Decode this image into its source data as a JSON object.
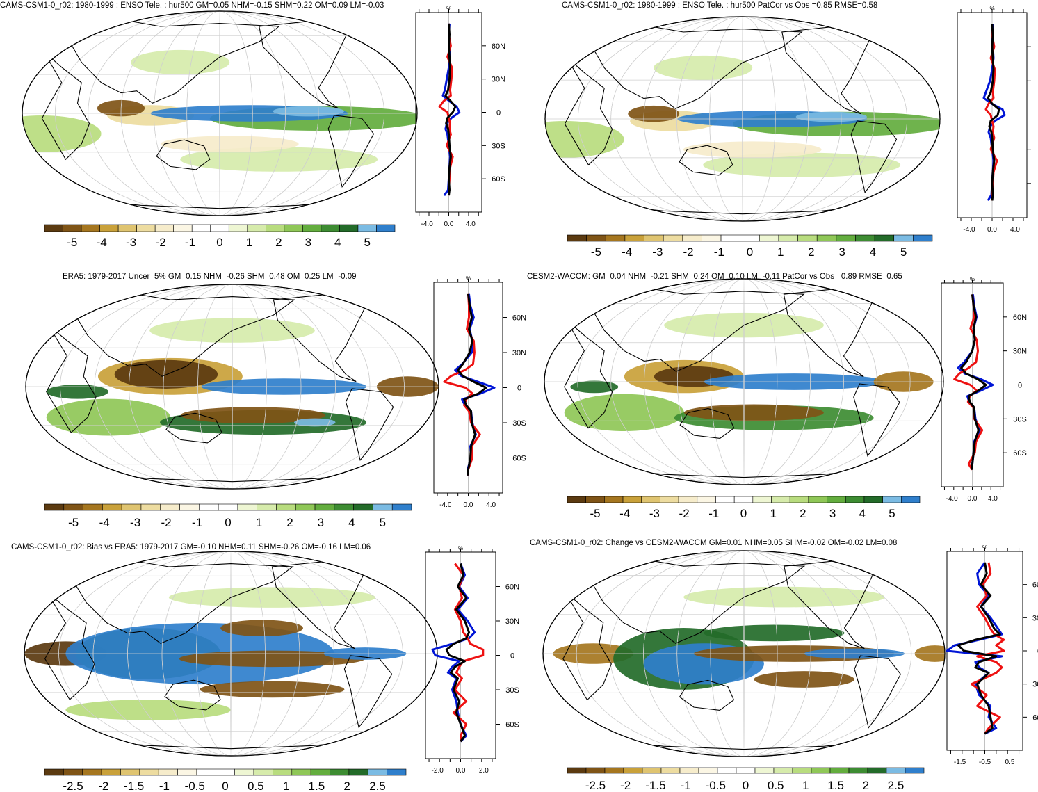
{
  "palette": {
    "colors": [
      "#5b3a10",
      "#7f5416",
      "#a5761f",
      "#c9a13a",
      "#dfc470",
      "#eddca0",
      "#f6eccb",
      "#fbf6e4",
      "#ffffff",
      "#ffffff",
      "#eef6d3",
      "#d6ebab",
      "#b8dc7e",
      "#8fc757",
      "#63ad3e",
      "#3d8c32",
      "#236b29",
      "#7bbbe3",
      "#2f7fcc"
    ],
    "land_edge": "#000000",
    "profile_black": "#000000",
    "profile_blue": "#0015d6",
    "profile_red": "#ee1111"
  },
  "chart_data": [
    {
      "type": "heatmap",
      "title": "CAMS-CSM1-0_r02: 1980-1999 : ENSO Tele. : hur500 GM=0.05 NHM=-0.15 SHM=0.22 OM=0.09 LM=-0.03",
      "colorbar_ticks": [
        "-5",
        "-4",
        "-3",
        "-2",
        "-1",
        "0",
        "1",
        "2",
        "3",
        "4",
        "5"
      ],
      "profile": {
        "unit_label": "%",
        "xlim": [
          -5,
          5
        ],
        "x_ticks": [
          "-4.0",
          "0.0",
          "4.0"
        ],
        "y_ticks": [
          "60N",
          "30N",
          "0",
          "30S",
          "60S"
        ],
        "lat": [
          80,
          70,
          60,
          50,
          40,
          30,
          20,
          15,
          10,
          5,
          0,
          -5,
          -10,
          -15,
          -20,
          -30,
          -40,
          -50,
          -60,
          -70,
          -75
        ],
        "series": [
          {
            "color": "black",
            "values": [
              0.0,
              0.1,
              0.0,
              0.1,
              0.2,
              0.1,
              -0.1,
              -0.5,
              0.3,
              1.0,
              0.6,
              -0.2,
              -0.4,
              -0.1,
              0.0,
              0.1,
              0.3,
              0.1,
              0.0,
              0.1,
              0.0
            ]
          },
          {
            "color": "blue",
            "values": [
              0.1,
              0.0,
              0.1,
              0.2,
              0.0,
              -0.3,
              -0.6,
              -0.9,
              0.1,
              1.2,
              1.6,
              0.4,
              -0.3,
              -0.5,
              -0.2,
              0.0,
              0.2,
              0.1,
              0.0,
              -0.1,
              -0.7
            ]
          },
          {
            "color": "red",
            "values": [
              0.0,
              0.0,
              0.3,
              -0.2,
              0.5,
              0.4,
              0.2,
              0.3,
              -0.8,
              -1.4,
              -0.2,
              0.0,
              0.2,
              0.1,
              0.3,
              -0.3,
              0.6,
              0.2,
              0.1,
              0.0,
              0.0
            ]
          }
        ]
      }
    },
    {
      "type": "heatmap",
      "title": "CAMS-CSM1-0_r02: 1980-1999 : ENSO Tele. : hur500 PatCor vs Obs =0.85 RMSE=0.58",
      "colorbar_ticks": [
        "-5",
        "-4",
        "-3",
        "-2",
        "-1",
        "0",
        "1",
        "2",
        "3",
        "4",
        "5"
      ],
      "profile": {
        "unit_label": "%",
        "xlim": [
          -5,
          5
        ],
        "x_ticks": [
          "-4.0",
          "0.0",
          "4.0"
        ],
        "y_ticks": [],
        "lat": [
          80,
          70,
          60,
          50,
          40,
          30,
          20,
          15,
          10,
          5,
          0,
          -5,
          -10,
          -15,
          -20,
          -30,
          -40,
          -50,
          -60,
          -70,
          -75
        ],
        "series": [
          {
            "color": "black",
            "values": [
              0.0,
              0.1,
              0.0,
              0.1,
              0.2,
              0.1,
              -0.2,
              -0.6,
              0.0,
              1.0,
              0.8,
              -0.2,
              -0.4,
              -0.1,
              0.0,
              0.1,
              0.3,
              0.1,
              0.0,
              0.1,
              0.0
            ]
          },
          {
            "color": "blue",
            "values": [
              0.1,
              0.0,
              0.1,
              0.2,
              0.0,
              -0.3,
              -0.9,
              -1.2,
              -0.1,
              1.5,
              1.8,
              0.4,
              -0.3,
              -0.5,
              -0.2,
              0.0,
              0.2,
              0.1,
              0.0,
              -0.1,
              -0.6
            ]
          },
          {
            "color": "red",
            "values": [
              0.0,
              0.0,
              0.3,
              -0.2,
              0.4,
              0.3,
              0.1,
              0.2,
              -0.5,
              -0.9,
              -0.2,
              0.0,
              0.2,
              0.1,
              0.3,
              -0.2,
              0.7,
              0.2,
              0.1,
              0.0,
              0.0
            ]
          }
        ]
      }
    },
    {
      "type": "heatmap",
      "title": "ERA5: 1979-2017 Uncer=5% GM=0.15 NHM=-0.26 SHM=0.48 OM=0.25 LM=-0.09",
      "colorbar_ticks": [
        "-5",
        "-4",
        "-3",
        "-2",
        "-1",
        "0",
        "1",
        "2",
        "3",
        "4",
        "5"
      ],
      "profile": {
        "unit_label": "%",
        "xlim": [
          -5,
          5
        ],
        "x_ticks": [
          "-4.0",
          "0.0",
          "4.0"
        ],
        "y_ticks": [
          "60N",
          "30N",
          "0",
          "30S",
          "60S"
        ],
        "lat": [
          80,
          70,
          60,
          50,
          40,
          30,
          20,
          15,
          10,
          5,
          0,
          -5,
          -10,
          -15,
          -20,
          -30,
          -40,
          -50,
          -60,
          -70,
          -75
        ],
        "series": [
          {
            "color": "black",
            "values": [
              0.0,
              0.2,
              0.5,
              0.1,
              0.6,
              0.2,
              -0.8,
              -1.5,
              -0.8,
              0.8,
              2.6,
              1.5,
              -0.6,
              -0.3,
              0.4,
              0.5,
              1.0,
              0.4,
              0.3,
              0.0,
              0.0
            ]
          },
          {
            "color": "blue",
            "values": [
              0.1,
              0.3,
              0.8,
              0.2,
              0.6,
              0.5,
              -0.9,
              -1.9,
              -1.0,
              1.4,
              3.8,
              1.8,
              -0.9,
              -0.5,
              0.4,
              0.6,
              1.1,
              0.3,
              0.4,
              -0.1,
              0.0
            ]
          },
          {
            "color": "red",
            "values": [
              0.0,
              0.1,
              0.1,
              -0.2,
              0.8,
              0.9,
              0.7,
              -0.5,
              -2.5,
              -3.5,
              -0.4,
              0.6,
              -0.3,
              -0.6,
              0.1,
              0.4,
              1.7,
              0.5,
              0.6,
              0.0,
              0.0
            ]
          }
        ]
      }
    },
    {
      "type": "heatmap",
      "title": "CESM2-WACCM: GM=0.04 NHM=-0.21 SHM=0.24 OM=0.10 LM=-0.11 PatCor vs Obs =0.89 RMSE=0.65",
      "colorbar_ticks": [
        "-5",
        "-4",
        "-3",
        "-2",
        "-1",
        "0",
        "1",
        "2",
        "3",
        "4",
        "5"
      ],
      "profile": {
        "unit_label": "%",
        "xlim": [
          -5,
          5
        ],
        "x_ticks": [
          "-4.0",
          "0.0",
          "4.0"
        ],
        "y_ticks": [
          "60N",
          "30N",
          "0",
          "30S",
          "60S"
        ],
        "lat": [
          80,
          70,
          60,
          50,
          40,
          30,
          20,
          15,
          10,
          5,
          0,
          -5,
          -10,
          -15,
          -20,
          -30,
          -40,
          -50,
          -60,
          -70,
          -75
        ],
        "series": [
          {
            "color": "black",
            "values": [
              0.0,
              0.2,
              0.6,
              0.2,
              0.4,
              0.0,
              -1.0,
              -1.8,
              -1.0,
              0.9,
              2.2,
              1.0,
              -0.6,
              -0.4,
              0.3,
              0.4,
              1.0,
              0.4,
              0.2,
              0.0,
              0.0
            ]
          },
          {
            "color": "blue",
            "values": [
              0.1,
              0.3,
              0.7,
              0.2,
              0.4,
              0.0,
              -1.3,
              -2.3,
              -1.2,
              1.4,
              3.3,
              1.4,
              -0.8,
              -0.5,
              0.3,
              0.5,
              1.2,
              0.3,
              0.2,
              0.0,
              0.0
            ]
          },
          {
            "color": "red",
            "values": [
              0.0,
              0.2,
              0.3,
              -0.3,
              0.7,
              0.9,
              0.6,
              -0.6,
              -2.1,
              -2.9,
              -0.3,
              0.7,
              -0.4,
              -0.7,
              0.2,
              0.3,
              1.6,
              0.6,
              0.4,
              -0.6,
              0.0
            ]
          }
        ]
      }
    },
    {
      "type": "heatmap",
      "title": "CAMS-CSM1-0_r02: Bias vs ERA5: 1979-2017 GM=-0.10 NHM=0.11 SHM=-0.26 OM=-0.16 LM=0.06",
      "colorbar_ticks": [
        "-2.5",
        "-2",
        "-1.5",
        "-1",
        "-0.5",
        "0",
        "0.5",
        "1",
        "1.5",
        "2",
        "2.5"
      ],
      "profile": {
        "unit_label": "%",
        "xlim": [
          -2.5,
          2.5
        ],
        "x_ticks": [
          "-2.0",
          "0.0",
          "2.0"
        ],
        "y_ticks": [
          "60N",
          "30N",
          "0",
          "30S",
          "60S"
        ],
        "lat": [
          80,
          70,
          60,
          50,
          40,
          30,
          20,
          15,
          10,
          5,
          0,
          -5,
          -10,
          -15,
          -20,
          -30,
          -40,
          -50,
          -60,
          -70,
          -75
        ],
        "series": [
          {
            "color": "black",
            "values": [
              0.0,
              0.2,
              -0.2,
              0.4,
              -0.3,
              0.3,
              0.6,
              0.4,
              -0.5,
              -1.0,
              -0.8,
              0.3,
              -0.4,
              -0.7,
              -0.2,
              -0.5,
              -0.1,
              -0.3,
              0.0,
              0.3,
              0.0
            ]
          },
          {
            "color": "blue",
            "values": [
              0.0,
              0.3,
              -0.1,
              0.5,
              -0.2,
              0.5,
              1.0,
              0.6,
              -0.6,
              -2.0,
              -1.8,
              -0.1,
              -0.6,
              -0.9,
              -0.3,
              -0.6,
              -0.3,
              -0.2,
              0.0,
              0.4,
              0.0
            ]
          },
          {
            "color": "red",
            "values": [
              -0.4,
              0.2,
              -0.1,
              0.1,
              -0.4,
              0.0,
              0.2,
              0.5,
              0.7,
              1.6,
              1.6,
              0.2,
              -0.1,
              -0.3,
              0.1,
              -0.4,
              0.4,
              -0.5,
              0.4,
              0.0,
              0.0
            ]
          }
        ]
      }
    },
    {
      "type": "heatmap",
      "title": "CAMS-CSM1-0_r02: Change vs CESM2-WACCM GM=0.01 NHM=0.05 SHM=-0.02 OM=-0.02 LM=0.08",
      "colorbar_ticks": [
        "-2.5",
        "-2",
        "-1.5",
        "-1",
        "-0.5",
        "0",
        "0.5",
        "1",
        "1.5",
        "2",
        "2.5"
      ],
      "profile": {
        "unit_label": "%",
        "xlim": [
          -2,
          2
        ],
        "x_ticks": [
          "-1.5",
          "-0.5",
          "0.5"
        ],
        "y_ticks": [
          "60N",
          "30N",
          "0",
          "30S",
          "60S"
        ],
        "lat": [
          80,
          70,
          60,
          50,
          40,
          30,
          20,
          15,
          10,
          5,
          0,
          -5,
          -10,
          -15,
          -20,
          -30,
          -40,
          -50,
          -60,
          -70,
          -75
        ],
        "series": [
          {
            "color": "black",
            "values": [
              0.0,
              0.1,
              -0.2,
              0.3,
              -0.2,
              0.2,
              0.5,
              0.8,
              -0.5,
              -1.4,
              -1.1,
              0.6,
              -0.3,
              -0.5,
              0.2,
              -0.4,
              -0.2,
              0.2,
              0.3,
              0.4,
              0.0
            ]
          },
          {
            "color": "blue",
            "values": [
              0.0,
              -0.4,
              -0.3,
              0.2,
              -0.2,
              0.3,
              0.7,
              0.9,
              -0.3,
              -1.6,
              -2.0,
              0.9,
              -0.5,
              -0.3,
              0.2,
              -0.5,
              -0.3,
              0.3,
              0.2,
              0.6,
              0.0
            ]
          },
          {
            "color": "red",
            "values": [
              0.2,
              0.3,
              -0.1,
              0.1,
              -0.4,
              0.0,
              0.3,
              0.5,
              1.0,
              0.6,
              1.0,
              -0.4,
              0.6,
              0.9,
              0.6,
              -0.7,
              0.1,
              -0.4,
              0.8,
              0.2,
              0.0
            ]
          }
        ]
      }
    }
  ]
}
